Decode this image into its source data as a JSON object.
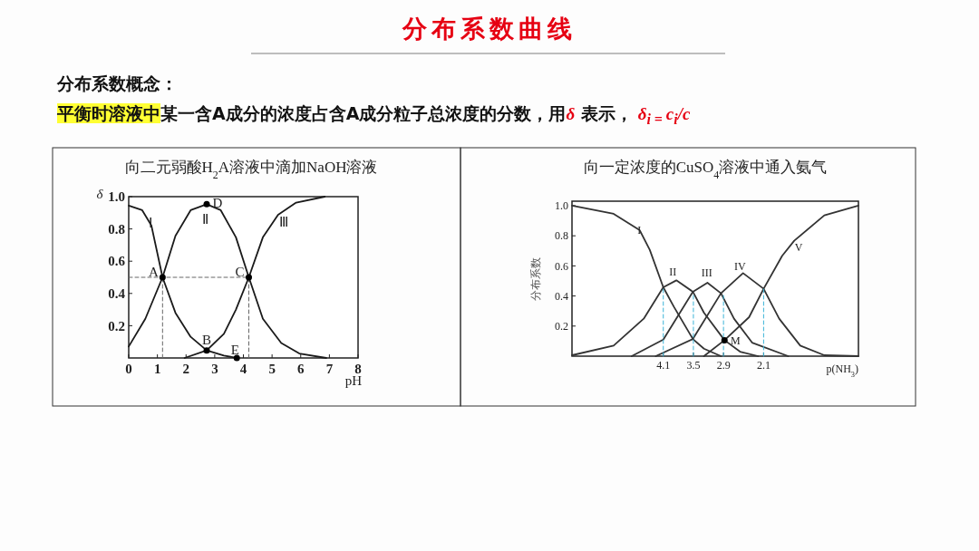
{
  "chart_data": [
    {
      "type": "other",
      "title": "分布系数曲线",
      "annotations": [
        "分布系数概念：",
        "平衡时溶液中",
        "某一含A成分的浓度占含A成分粒子总浓度的分数，用",
        "δ",
        " 表示，",
        "δ$_{i = }$c$_{i}$/c"
      ]
    },
    {
      "type": "line",
      "title": "向二元弱酸H$_{2}$A溶液中滴加NaOH溶液",
      "xlabel": "pH",
      "ylabel": "δ",
      "xlim": [
        0,
        8
      ],
      "ylim": [
        0,
        1
      ],
      "xticks": [
        0,
        1,
        2,
        3,
        4,
        5,
        6,
        7,
        8
      ],
      "yticks": [
        0.2,
        0.4,
        0.6,
        0.8,
        {
          "value": 1,
          "label": "1.0"
        }
      ],
      "series": [
        {
          "name": "Ⅰ",
          "color": "#1a1a1a",
          "x": [
            0,
            0.47,
            0.79,
            1.18,
            1.63,
            2.16,
            2.72,
            3.32,
            3.77
          ],
          "values": [
            0.944,
            0.916,
            0.822,
            0.5,
            0.28,
            0.131,
            0.047,
            0.015,
            0
          ]
        },
        {
          "name": "Ⅱ",
          "color": "#1a1a1a",
          "x": [
            0,
            0.58,
            1.18,
            1.63,
            2.16,
            2.72,
            3.21,
            3.74,
            4.19,
            4.68,
            5.32,
            5.95,
            6.89
          ],
          "values": [
            0.071,
            0.243,
            0.5,
            0.757,
            0.916,
            0.953,
            0.916,
            0.748,
            0.5,
            0.243,
            0.093,
            0.028,
            0
          ]
        },
        {
          "name": "Ⅲ",
          "color": "#1a1a1a",
          "x": [
            1.95,
            2.72,
            3.32,
            3.74,
            4.19,
            4.68,
            5.21,
            5.84,
            6.84
          ],
          "values": [
            0,
            0.047,
            0.15,
            0.3,
            0.5,
            0.748,
            0.888,
            0.963,
            1
          ]
        },
        {
          "type": "line",
          "line_style": "dashed",
          "color": "#666666",
          "x": [
            0,
            4.19
          ],
          "values": [
            0.5,
            0.5
          ]
        },
        {
          "type": "line",
          "line_style": "dashed",
          "color": "#666666",
          "x": [
            1.18,
            1.18
          ],
          "values": [
            0,
            0.5
          ]
        },
        {
          "type": "line",
          "line_style": "dashed",
          "color": "#666666",
          "x": [
            4.19,
            4.19
          ],
          "values": [
            0,
            0.5
          ]
        },
        {
          "type": "scatter",
          "marker": "circle",
          "color": "#000000",
          "x": [
            1.18,
            2.72,
            4.19,
            2.72,
            3.77
          ],
          "values": [
            0.5,
            0.047,
            0.5,
            0.953,
            0
          ]
        }
      ],
      "annotations": [
        {
          "text": "A",
          "x": 1.18,
          "y": 0.5
        },
        {
          "text": "B",
          "x": 2.72,
          "y": 0.047
        },
        {
          "text": "C",
          "x": 4.19,
          "y": 0.5
        },
        {
          "text": "D",
          "x": 2.72,
          "y": 0.953
        },
        {
          "text": "E",
          "x": 3.77,
          "y": 0
        }
      ]
    },
    {
      "type": "line",
      "title": "向一定浓度的CuSO$_{4}$溶液中通入氨气",
      "xlabel": "p(NH$_{3}$)",
      "ylabel": "分布系数",
      "xlim": [
        5.92,
        0.21
      ],
      "ylim": [
        0,
        1.03
      ],
      "xticks": [
        4.1,
        3.5,
        2.9,
        2.1
      ],
      "yticks": [
        0.2,
        0.4,
        0.6,
        0.8,
        {
          "value": 1,
          "label": "1.0"
        }
      ],
      "series": [
        {
          "name": "I",
          "color": "#333333",
          "x": [
            5.92,
            5.09,
            4.57,
            4.37,
            4.1,
            3.89,
            3.51,
            3.29,
            2.95
          ],
          "values": [
            1,
            0.946,
            0.837,
            0.707,
            0.458,
            0.329,
            0.114,
            0.05,
            0
          ]
        },
        {
          "name": "II",
          "color": "#333333",
          "x": [
            5.92,
            5.09,
            4.49,
            4.1,
            3.84,
            3.51,
            3.29,
            2.88,
            2.57,
            2.21
          ],
          "values": [
            0.006,
            0.07,
            0.249,
            0.458,
            0.504,
            0.428,
            0.289,
            0.106,
            0.03,
            0
          ]
        },
        {
          "name": "III",
          "color": "#333333",
          "x": [
            4.73,
            4.1,
            3.51,
            3.22,
            2.95,
            2.69,
            2.33,
            1.61
          ],
          "values": [
            0,
            0.11,
            0.428,
            0.488,
            0.418,
            0.249,
            0.09,
            0
          ]
        },
        {
          "name": "IV",
          "color": "#333333",
          "x": [
            4.25,
            3.51,
            2.95,
            2.51,
            2.1,
            1.79,
            1.37,
            0.89,
            0.21
          ],
          "values": [
            0,
            0.114,
            0.418,
            0.552,
            0.448,
            0.249,
            0.07,
            0.006,
            0
          ]
        },
        {
          "name": "V",
          "color": "#333333",
          "x": [
            3.29,
            2.88,
            2.39,
            2.1,
            1.73,
            1.49,
            0.89,
            0.21
          ],
          "values": [
            0,
            0.106,
            0.259,
            0.448,
            0.667,
            0.767,
            0.936,
            1
          ]
        },
        {
          "type": "line",
          "line_style": "dashed",
          "color": "#3cb4d8",
          "x": [
            4.1,
            4.1
          ],
          "values": [
            0,
            0.45
          ]
        },
        {
          "type": "line",
          "line_style": "dashed",
          "color": "#3cb4d8",
          "x": [
            3.5,
            3.5
          ],
          "values": [
            0,
            0.42
          ]
        },
        {
          "type": "line",
          "line_style": "dashed",
          "color": "#3cb4d8",
          "x": [
            2.9,
            2.9
          ],
          "values": [
            0,
            0.42
          ]
        },
        {
          "type": "line",
          "line_style": "dashed",
          "color": "#3cb4d8",
          "x": [
            2.1,
            2.1
          ],
          "values": [
            0,
            0.45
          ]
        },
        {
          "type": "scatter",
          "marker": "circle",
          "color": "#000000",
          "x": [
            2.88
          ],
          "values": [
            0.106
          ]
        }
      ],
      "annotations": [
        {
          "text": "M",
          "x": 2.88,
          "y": 0.106
        }
      ]
    }
  ]
}
